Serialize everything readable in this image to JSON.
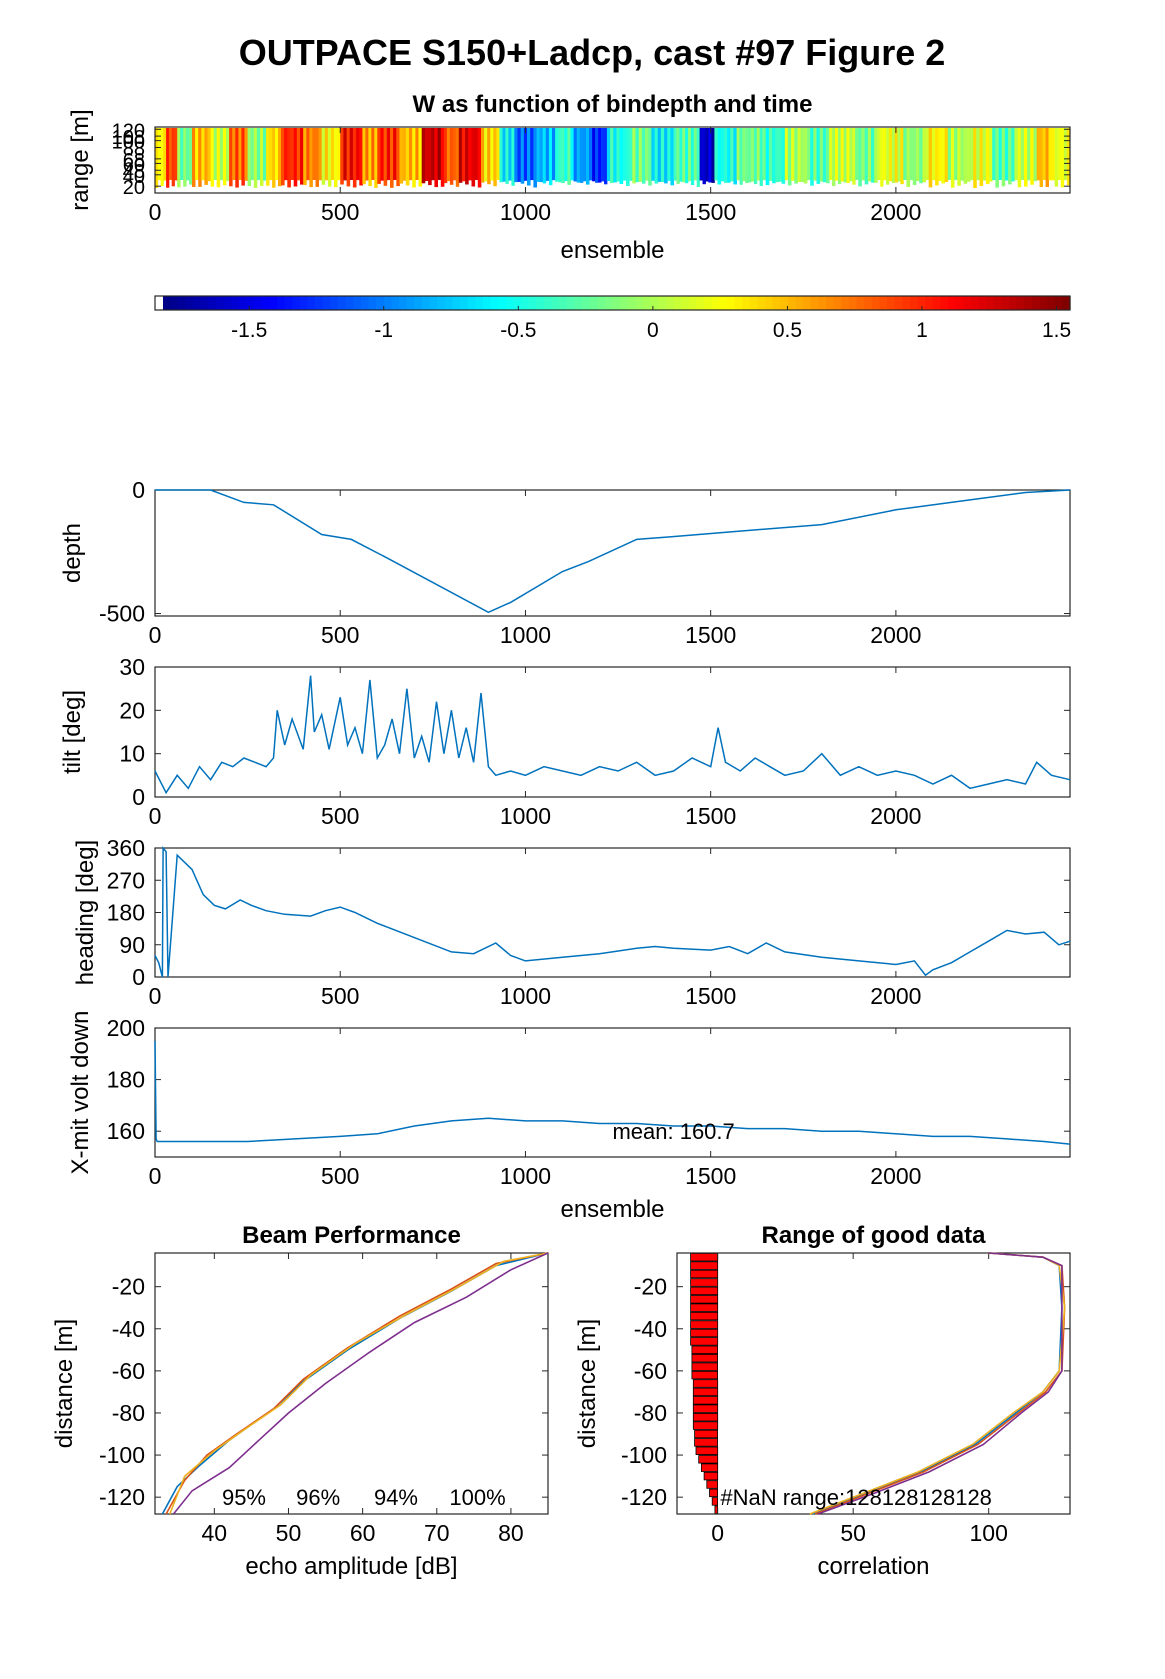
{
  "figure_title": "OUTPACE S150+Ladcp, cast #97 Figure 2",
  "chart_data": [
    {
      "id": "w-image",
      "type": "heatmap",
      "title": "W as function of bindepth and time",
      "xlabel": "ensemble",
      "ylabel": "range [m]",
      "xlim": [
        0,
        2470
      ],
      "ylim": [
        8,
        124
      ],
      "xticks": [
        0,
        500,
        1000,
        1500,
        2000
      ],
      "yticks": [
        20,
        40,
        48,
        60,
        68,
        88,
        100,
        108,
        120
      ],
      "colorbar": {
        "clim": [
          -1.85,
          1.55
        ],
        "ticks": [
          -1.5,
          -1,
          -0.5,
          0,
          0.5,
          1,
          1.5
        ],
        "colormap": "jet"
      },
      "w_segments": [
        {
          "x": [
            0,
            30
          ],
          "w": 0.3
        },
        {
          "x": [
            30,
            60
          ],
          "w": 0.9
        },
        {
          "x": [
            60,
            100
          ],
          "w": -0.2
        },
        {
          "x": [
            100,
            150
          ],
          "w": 0.5
        },
        {
          "x": [
            150,
            200
          ],
          "w": 0.1
        },
        {
          "x": [
            200,
            250
          ],
          "w": 0.8
        },
        {
          "x": [
            250,
            300
          ],
          "w": -0.1
        },
        {
          "x": [
            300,
            340
          ],
          "w": 0.4
        },
        {
          "x": [
            340,
            400
          ],
          "w": 1.0
        },
        {
          "x": [
            400,
            450
          ],
          "w": 0.7
        },
        {
          "x": [
            450,
            500
          ],
          "w": 0.3
        },
        {
          "x": [
            500,
            560
          ],
          "w": 1.1
        },
        {
          "x": [
            560,
            600
          ],
          "w": 0.6
        },
        {
          "x": [
            600,
            660
          ],
          "w": 1.0
        },
        {
          "x": [
            660,
            720
          ],
          "w": 0.5
        },
        {
          "x": [
            720,
            780
          ],
          "w": 1.3
        },
        {
          "x": [
            780,
            820
          ],
          "w": 0.8
        },
        {
          "x": [
            820,
            880
          ],
          "w": 1.2
        },
        {
          "x": [
            880,
            930
          ],
          "w": 0.4
        },
        {
          "x": [
            930,
            970
          ],
          "w": -0.6
        },
        {
          "x": [
            970,
            1030
          ],
          "w": -1.1
        },
        {
          "x": [
            1030,
            1080
          ],
          "w": -0.8
        },
        {
          "x": [
            1080,
            1130
          ],
          "w": -0.4
        },
        {
          "x": [
            1130,
            1180
          ],
          "w": -0.9
        },
        {
          "x": [
            1180,
            1220
          ],
          "w": -1.3
        },
        {
          "x": [
            1220,
            1280
          ],
          "w": -0.5
        },
        {
          "x": [
            1280,
            1340
          ],
          "w": -0.2
        },
        {
          "x": [
            1340,
            1400
          ],
          "w": -0.6
        },
        {
          "x": [
            1400,
            1470
          ],
          "w": -0.3
        },
        {
          "x": [
            1470,
            1510
          ],
          "w": -1.6
        },
        {
          "x": [
            1510,
            1570
          ],
          "w": -0.5
        },
        {
          "x": [
            1570,
            1640
          ],
          "w": -0.2
        },
        {
          "x": [
            1640,
            1700
          ],
          "w": -0.4
        },
        {
          "x": [
            1700,
            1760
          ],
          "w": 0.0
        },
        {
          "x": [
            1760,
            1820
          ],
          "w": -0.3
        },
        {
          "x": [
            1820,
            1890
          ],
          "w": 0.1
        },
        {
          "x": [
            1890,
            1950
          ],
          "w": -0.2
        },
        {
          "x": [
            1950,
            2020
          ],
          "w": 0.2
        },
        {
          "x": [
            2020,
            2080
          ],
          "w": -0.1
        },
        {
          "x": [
            2080,
            2140
          ],
          "w": 0.3
        },
        {
          "x": [
            2140,
            2200
          ],
          "w": 0.0
        },
        {
          "x": [
            2200,
            2260
          ],
          "w": 0.2
        },
        {
          "x": [
            2260,
            2320
          ],
          "w": -0.3
        },
        {
          "x": [
            2320,
            2380
          ],
          "w": 0.1
        },
        {
          "x": [
            2380,
            2420
          ],
          "w": 0.5
        },
        {
          "x": [
            2420,
            2470
          ],
          "w": 0.2
        }
      ]
    },
    {
      "id": "depth",
      "type": "line",
      "xlabel": "",
      "ylabel": "depth",
      "xlim": [
        0,
        2470
      ],
      "ylim": [
        -510,
        0
      ],
      "xticks": [
        0,
        500,
        1000,
        1500,
        2000
      ],
      "yticks": [
        -500,
        0
      ],
      "color": "#0072bd",
      "x": [
        0,
        150,
        240,
        320,
        450,
        530,
        620,
        900,
        960,
        1100,
        1170,
        1300,
        1390,
        1550,
        1800,
        2000,
        2200,
        2350,
        2470
      ],
      "y": [
        0,
        0,
        -50,
        -60,
        -180,
        -200,
        -270,
        -495,
        -455,
        -330,
        -290,
        -200,
        -190,
        -170,
        -140,
        -80,
        -40,
        -10,
        0
      ]
    },
    {
      "id": "tilt",
      "type": "line",
      "xlabel": "",
      "ylabel": "tilt [deg]",
      "xlim": [
        0,
        2470
      ],
      "ylim": [
        0,
        30
      ],
      "xticks": [
        0,
        500,
        1000,
        1500,
        2000
      ],
      "yticks": [
        0,
        10,
        20,
        30
      ],
      "color": "#0072bd",
      "x": [
        0,
        30,
        60,
        90,
        120,
        150,
        180,
        210,
        240,
        270,
        300,
        320,
        330,
        350,
        370,
        400,
        420,
        430,
        450,
        470,
        500,
        520,
        540,
        560,
        580,
        600,
        620,
        640,
        660,
        680,
        700,
        720,
        740,
        760,
        780,
        800,
        820,
        840,
        860,
        880,
        900,
        920,
        960,
        1000,
        1050,
        1100,
        1150,
        1200,
        1250,
        1300,
        1350,
        1400,
        1450,
        1500,
        1520,
        1540,
        1580,
        1620,
        1660,
        1700,
        1750,
        1800,
        1850,
        1900,
        1950,
        2000,
        2050,
        2100,
        2150,
        2200,
        2250,
        2300,
        2350,
        2380,
        2420,
        2470
      ],
      "y": [
        6,
        1,
        5,
        2,
        7,
        4,
        8,
        7,
        9,
        8,
        7,
        9,
        20,
        12,
        18,
        11,
        28,
        15,
        19,
        11,
        23,
        12,
        16,
        10,
        27,
        9,
        12,
        18,
        10,
        25,
        9,
        14,
        8,
        22,
        10,
        20,
        9,
        16,
        8,
        24,
        7,
        5,
        6,
        5,
        7,
        6,
        5,
        7,
        6,
        8,
        5,
        6,
        9,
        7,
        16,
        8,
        6,
        9,
        7,
        5,
        6,
        10,
        5,
        7,
        5,
        6,
        5,
        3,
        5,
        2,
        3,
        4,
        3,
        8,
        5,
        4
      ]
    },
    {
      "id": "heading",
      "type": "line",
      "xlabel": "",
      "ylabel": "heading [deg]",
      "xlim": [
        0,
        2470
      ],
      "ylim": [
        0,
        360
      ],
      "xticks": [
        0,
        500,
        1000,
        1500,
        2000
      ],
      "yticks": [
        0,
        90,
        180,
        270,
        360
      ],
      "color": "#0072bd",
      "x": [
        0,
        10,
        20,
        22,
        30,
        35,
        60,
        100,
        130,
        160,
        190,
        230,
        260,
        300,
        350,
        420,
        460,
        500,
        540,
        600,
        700,
        800,
        860,
        920,
        960,
        1000,
        1100,
        1200,
        1300,
        1350,
        1400,
        1500,
        1550,
        1600,
        1650,
        1700,
        1800,
        1900,
        2000,
        2050,
        2080,
        2100,
        2150,
        2200,
        2250,
        2300,
        2350,
        2400,
        2440,
        2470
      ],
      "y": [
        60,
        40,
        0,
        360,
        350,
        0,
        340,
        300,
        230,
        200,
        190,
        215,
        200,
        185,
        175,
        170,
        185,
        195,
        180,
        150,
        110,
        70,
        65,
        95,
        60,
        45,
        55,
        65,
        80,
        85,
        80,
        75,
        85,
        65,
        95,
        70,
        55,
        45,
        35,
        45,
        5,
        20,
        40,
        70,
        100,
        130,
        120,
        125,
        90,
        100
      ]
    },
    {
      "id": "xmit-volt",
      "type": "line",
      "xlabel": "ensemble",
      "ylabel": "X-mit volt down",
      "xlim": [
        0,
        2470
      ],
      "ylim": [
        150,
        200
      ],
      "xticks": [
        0,
        500,
        1000,
        1500,
        2000
      ],
      "yticks": [
        160,
        180,
        200
      ],
      "color": "#0072bd",
      "annotation": "mean: 160.7",
      "x": [
        0,
        3,
        6,
        250,
        500,
        600,
        700,
        800,
        900,
        1000,
        1100,
        1200,
        1300,
        1400,
        1500,
        1600,
        1700,
        1800,
        1900,
        2000,
        2100,
        2200,
        2300,
        2400,
        2470
      ],
      "y": [
        195,
        157,
        156,
        156,
        158,
        159,
        162,
        164,
        165,
        164,
        164,
        163,
        163,
        162,
        162,
        161,
        161,
        160,
        160,
        159,
        158,
        158,
        157,
        156,
        155
      ]
    },
    {
      "id": "beam-performance",
      "type": "line",
      "title": "Beam Performance",
      "xlabel": "echo amplitude [dB]",
      "ylabel": "distance [m]",
      "xlim": [
        32,
        85
      ],
      "ylim": [
        -128,
        -4
      ],
      "xticks": [
        40,
        50,
        60,
        70,
        80
      ],
      "yticks": [
        -120,
        -100,
        -80,
        -60,
        -40,
        -20
      ],
      "annotations": [
        "95%",
        "96%",
        "94%",
        "100%"
      ],
      "series": [
        {
          "color": "#0072bd",
          "x": [
            33,
            35,
            38,
            42,
            48,
            52,
            58,
            65,
            72,
            78,
            85
          ],
          "y": [
            -128,
            -115,
            -105,
            -93,
            -78,
            -65,
            -50,
            -35,
            -22,
            -10,
            -4
          ]
        },
        {
          "color": "#d95319",
          "x": [
            33.5,
            36,
            39,
            43,
            48,
            52,
            58,
            65,
            72,
            78,
            85
          ],
          "y": [
            -128,
            -112,
            -100,
            -90,
            -78,
            -64,
            -49,
            -34,
            -21,
            -9,
            -4
          ]
        },
        {
          "color": "#edb120",
          "x": [
            34,
            36,
            40,
            44,
            49,
            53,
            59,
            66,
            73,
            79,
            85
          ],
          "y": [
            -128,
            -110,
            -98,
            -88,
            -76,
            -62,
            -47,
            -33,
            -20,
            -8,
            -4
          ]
        },
        {
          "color": "#7e2f8e",
          "x": [
            34.5,
            37,
            42,
            46,
            50,
            55,
            61,
            67,
            74,
            80,
            85
          ],
          "y": [
            -128,
            -117,
            -106,
            -93,
            -80,
            -66,
            -51,
            -37,
            -25,
            -12,
            -4
          ]
        }
      ]
    },
    {
      "id": "range-good-data",
      "type": "line",
      "title": "Range of good data",
      "xlabel": "correlation",
      "ylabel": "distance [m]",
      "xlim": [
        -15,
        130
      ],
      "ylim": [
        -128,
        -4
      ],
      "xticks": [
        0,
        50,
        100
      ],
      "yticks": [
        -120,
        -100,
        -80,
        -60,
        -40,
        -20
      ],
      "annotation": "#NaN range:128128128128",
      "bars": {
        "color": "#ff0000",
        "y": [
          -6,
          -10,
          -14,
          -18,
          -22,
          -26,
          -30,
          -34,
          -38,
          -42,
          -46,
          -50,
          -54,
          -58,
          -62,
          -66,
          -70,
          -74,
          -78,
          -82,
          -86,
          -90,
          -94,
          -98,
          -102,
          -106,
          -110,
          -114,
          -118,
          -122,
          -126
        ],
        "x": [
          -10,
          -10,
          -10,
          -10,
          -10,
          -10,
          -10,
          -10,
          -10,
          -10,
          -10,
          -9.5,
          -9.5,
          -9.5,
          -9.5,
          -9,
          -9,
          -9,
          -9,
          -9,
          -9,
          -8.5,
          -8.5,
          -8,
          -7,
          -6,
          -5,
          -4,
          -3,
          -2,
          -1
        ]
      },
      "series": [
        {
          "color": "#0072bd",
          "x": [
            100,
            120,
            126,
            127,
            126,
            120,
            110,
            95,
            75,
            55,
            35
          ],
          "y": [
            -4,
            -6,
            -10,
            -30,
            -60,
            -70,
            -80,
            -95,
            -108,
            -118,
            -128
          ]
        },
        {
          "color": "#d95319",
          "x": [
            100,
            120,
            127,
            128,
            127,
            121,
            111,
            96,
            76,
            56,
            36
          ],
          "y": [
            -4,
            -6,
            -10,
            -30,
            -60,
            -70,
            -80,
            -95,
            -108,
            -118,
            -128
          ]
        },
        {
          "color": "#edb120",
          "x": [
            100,
            120,
            126,
            128,
            126,
            120,
            109,
            94,
            74,
            54,
            34
          ],
          "y": [
            -4,
            -6,
            -10,
            -30,
            -60,
            -70,
            -80,
            -95,
            -108,
            -118,
            -128
          ]
        },
        {
          "color": "#7e2f8e",
          "x": [
            100,
            120,
            127,
            127,
            127,
            122,
            112,
            98,
            78,
            58,
            37
          ],
          "y": [
            -4,
            -6,
            -10,
            -30,
            -60,
            -70,
            -80,
            -95,
            -108,
            -118,
            -128
          ]
        }
      ]
    }
  ]
}
